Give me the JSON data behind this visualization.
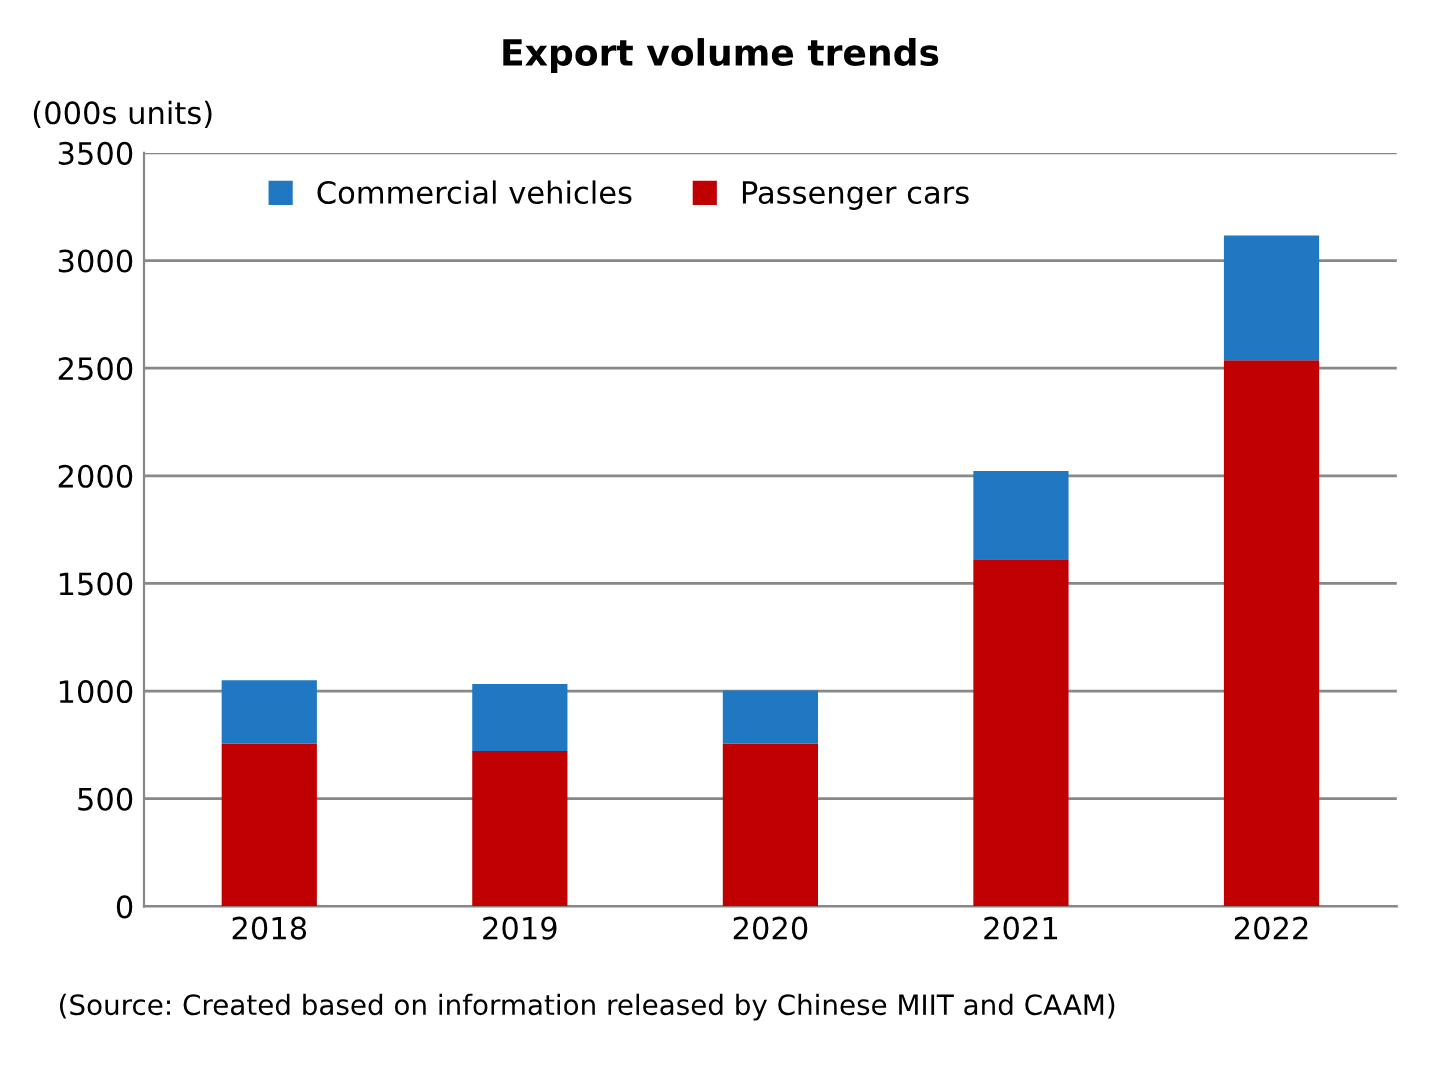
{
  "chart_data": {
    "type": "bar",
    "title": "Export volume trends",
    "ylabel": "(000s units)",
    "stacked": true,
    "categories": [
      "2018",
      "2019",
      "2020",
      "2021",
      "2022"
    ],
    "series": [
      {
        "name": "Passenger cars",
        "color": "#c00000",
        "values": [
          756,
          722,
          756,
          1612,
          2537
        ]
      },
      {
        "name": "Commercial vehicles",
        "color": "#1f78c1",
        "values": [
          294,
          311,
          247,
          410,
          579
        ]
      }
    ],
    "ylim": [
      0,
      3500
    ],
    "yticks": [
      0,
      500,
      1000,
      1500,
      2000,
      2500,
      3000,
      3500
    ],
    "grid": "y",
    "legend": "top",
    "annotations": [
      "(Source: Created based on information released by Chinese MIIT and CAAM)"
    ]
  }
}
